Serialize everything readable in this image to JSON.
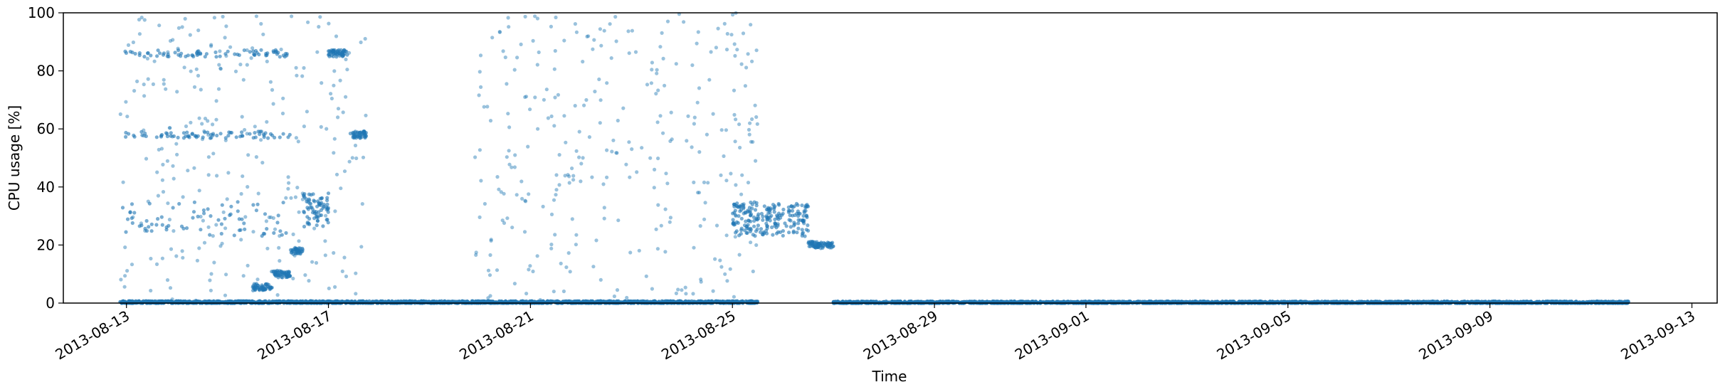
{
  "chart_data": {
    "type": "scatter",
    "title": "",
    "xlabel": "Time",
    "ylabel": "CPU usage [%]",
    "xlim": [
      "2013-08-11T18:00",
      "2013-09-13T12:00"
    ],
    "ylim": [
      0,
      100
    ],
    "grid": false,
    "marker_color": "#1f77b4",
    "x_ticks": [
      "2013-08-13",
      "2013-08-17",
      "2013-08-21",
      "2013-08-25",
      "2013-08-29",
      "2013-09-01",
      "2013-09-05",
      "2013-09-09",
      "2013-09-13"
    ],
    "y_ticks": [
      0,
      20,
      40,
      60,
      80,
      100
    ],
    "series": [
      {
        "points_note": "",
        "clusters": [
          {
            "start": "2013-08-12T21:00",
            "end": "2013-08-19T20:00",
            "level": 0.3
          },
          {
            "start": "2013-08-12T22:00",
            "end": "2013-08-16T06:00",
            "levels": [
              29,
              58,
              86
            ]
          },
          {
            "start": "2013-08-15T12:00",
            "end": "2013-08-15T21:00",
            "level": 5.5
          },
          {
            "start": "2013-08-15T21:00",
            "end": "2013-08-16T06:00",
            "level": 10
          },
          {
            "start": "2013-08-16T06:00",
            "end": "2013-08-16T12:00",
            "level": 18
          },
          {
            "start": "2013-08-16T12:00",
            "end": "2013-08-17T00:00",
            "level": 32
          },
          {
            "start": "2013-08-17T00:00",
            "end": "2013-08-17T09:00",
            "level": 86
          },
          {
            "start": "2013-08-17T10:00",
            "end": "2013-08-17T18:00",
            "level": 58
          },
          {
            "start": "2013-08-19T20:00",
            "end": "2013-08-25T12:00",
            "level": 0.3
          },
          {
            "start": "2013-08-25T00:00",
            "end": "2013-08-26T12:00",
            "level": 29
          },
          {
            "start": "2013-08-26T12:00",
            "end": "2013-08-27T00:00",
            "level": 20
          },
          {
            "start": "2013-08-27T00:00",
            "end": "2013-09-11T18:00",
            "level": 0.2
          }
        ],
        "scatter_windows": [
          {
            "start": "2013-08-12T21:00",
            "end": "2013-08-17T18:00",
            "max": 100
          },
          {
            "start": "2013-08-19T21:00",
            "end": "2013-08-25T12:00",
            "max": 100
          }
        ]
      }
    ]
  }
}
